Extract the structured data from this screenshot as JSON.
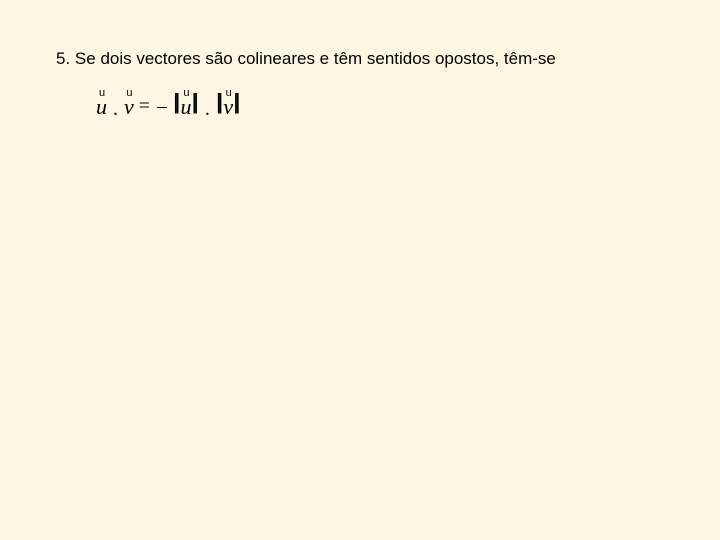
{
  "colors": {
    "background": "#fdf6e3",
    "text": "#000000"
  },
  "statement": {
    "number": "5.",
    "text": "Se dois vectores são colineares e têm sentidos opostos, têm-se"
  },
  "formula": {
    "u_arrow": "u",
    "v_arrow": "u",
    "u": "u",
    "v": "v",
    "dot": ".",
    "equals_minus": "= –",
    "center_dot": ".",
    "dbar": "||"
  }
}
